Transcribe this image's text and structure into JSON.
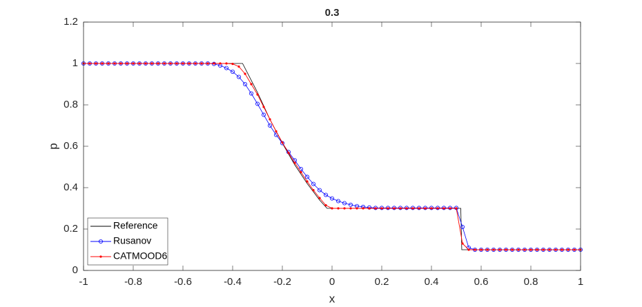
{
  "chart_data": {
    "type": "line",
    "title": "0.3",
    "xlabel": "x",
    "ylabel": "p",
    "xlim": [
      -1,
      1
    ],
    "ylim": [
      0,
      1.2
    ],
    "xticks": [
      -1,
      -0.8,
      -0.6,
      -0.4,
      -0.2,
      0,
      0.2,
      0.4,
      0.6,
      0.8,
      1
    ],
    "yticks": [
      0,
      0.2,
      0.4,
      0.6,
      0.8,
      1,
      1.2
    ],
    "grid": false,
    "legend": "lower left",
    "x": [
      -1,
      -0.975,
      -0.95,
      -0.925,
      -0.9,
      -0.875,
      -0.85,
      -0.825,
      -0.8,
      -0.775,
      -0.75,
      -0.725,
      -0.7,
      -0.675,
      -0.65,
      -0.625,
      -0.6,
      -0.575,
      -0.55,
      -0.525,
      -0.5,
      -0.475,
      -0.45,
      -0.425,
      -0.4,
      -0.375,
      -0.35,
      -0.325,
      -0.3,
      -0.275,
      -0.25,
      -0.225,
      -0.2,
      -0.175,
      -0.15,
      -0.125,
      -0.1,
      -0.075,
      -0.05,
      -0.025,
      0,
      0.025,
      0.05,
      0.075,
      0.1,
      0.125,
      0.15,
      0.175,
      0.2,
      0.225,
      0.25,
      0.275,
      0.3,
      0.325,
      0.35,
      0.375,
      0.4,
      0.425,
      0.45,
      0.475,
      0.5,
      0.525,
      0.55,
      0.575,
      0.6,
      0.625,
      0.65,
      0.675,
      0.7,
      0.725,
      0.75,
      0.775,
      0.8,
      0.825,
      0.85,
      0.875,
      0.9,
      0.925,
      0.95,
      0.975,
      1
    ],
    "series": [
      {
        "name": "Reference",
        "color": "#000000",
        "marker": "none",
        "x": [
          -1,
          -0.36,
          -0.3,
          -0.25,
          -0.2,
          -0.15,
          -0.1,
          -0.05,
          -0.02,
          0.518,
          0.522,
          1
        ],
        "values": [
          1,
          1,
          0.86,
          0.73,
          0.615,
          0.51,
          0.42,
          0.34,
          0.3,
          0.3,
          0.1,
          0.1
        ]
      },
      {
        "name": "Rusanov",
        "color": "#0000ff",
        "marker": "o",
        "values": [
          1,
          1,
          1,
          1,
          1,
          1,
          1,
          1,
          1,
          1,
          1,
          1,
          1,
          1,
          1,
          1,
          1,
          1,
          1,
          1,
          1,
          0.998,
          0.99,
          0.978,
          0.96,
          0.935,
          0.9,
          0.855,
          0.805,
          0.752,
          0.7,
          0.655,
          0.615,
          0.572,
          0.532,
          0.49,
          0.452,
          0.418,
          0.388,
          0.365,
          0.348,
          0.335,
          0.325,
          0.317,
          0.311,
          0.307,
          0.304,
          0.302,
          0.302,
          0.302,
          0.302,
          0.302,
          0.302,
          0.302,
          0.302,
          0.302,
          0.302,
          0.302,
          0.302,
          0.302,
          0.302,
          0.21,
          0.11,
          0.1,
          0.1,
          0.1,
          0.1,
          0.1,
          0.1,
          0.1,
          0.1,
          0.1,
          0.1,
          0.1,
          0.1,
          0.1,
          0.1,
          0.1,
          0.1,
          0.1,
          0.1
        ]
      },
      {
        "name": "CATMOOD6",
        "color": "#ff0000",
        "marker": ".",
        "values": [
          1,
          1,
          1,
          1,
          1,
          1,
          1,
          1,
          1,
          1,
          1,
          1,
          1,
          1,
          1,
          1,
          1,
          1,
          1,
          1,
          1,
          1,
          1,
          1,
          0.998,
          0.985,
          0.95,
          0.9,
          0.85,
          0.79,
          0.73,
          0.672,
          0.618,
          0.568,
          0.52,
          0.475,
          0.43,
          0.388,
          0.35,
          0.315,
          0.3,
          0.3,
          0.3,
          0.3,
          0.3,
          0.3,
          0.3,
          0.3,
          0.3,
          0.3,
          0.3,
          0.3,
          0.3,
          0.3,
          0.3,
          0.3,
          0.3,
          0.3,
          0.3,
          0.3,
          0.3,
          0.13,
          0.1,
          0.1,
          0.1,
          0.1,
          0.1,
          0.1,
          0.1,
          0.1,
          0.1,
          0.1,
          0.1,
          0.1,
          0.1,
          0.1,
          0.1,
          0.1,
          0.1,
          0.1,
          0.1
        ]
      }
    ]
  }
}
